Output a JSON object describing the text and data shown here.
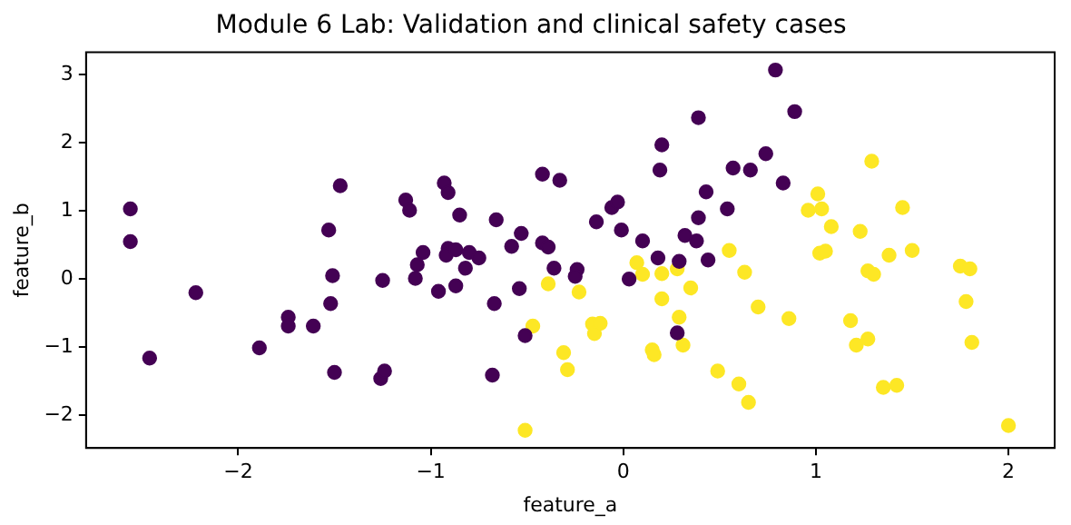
{
  "chart_data": {
    "type": "scatter",
    "title": "Module 6 Lab: Validation and clinical safety cases",
    "xlabel": "feature_a",
    "ylabel": "feature_b",
    "xlim": [
      -2.79,
      2.24
    ],
    "ylim": [
      -2.48,
      3.33
    ],
    "xticks": [
      {
        "value": -2,
        "label": "−2"
      },
      {
        "value": -1,
        "label": "−1"
      },
      0,
      1,
      2
    ],
    "yticks": [
      {
        "value": -2,
        "label": "−2"
      },
      {
        "value": -1,
        "label": "−1"
      },
      0,
      1,
      2,
      3
    ],
    "grid": false,
    "legend": false,
    "marker": "circle",
    "series": [
      {
        "color": "#440154",
        "x": [
          -2.56,
          -2.56,
          -2.46,
          -2.22,
          -1.89,
          -1.74,
          -1.74,
          -1.61,
          -1.47,
          -1.53,
          -1.51,
          -1.52,
          -1.5,
          -1.25,
          -1.26,
          -1.24,
          -1.13,
          -1.11,
          -1.04,
          -1.07,
          -1.08,
          -0.96,
          -0.93,
          -0.91,
          -0.85,
          -0.91,
          -0.92,
          -0.87,
          -0.8,
          -0.75,
          -0.82,
          -0.87,
          -0.66,
          -0.67,
          -0.68,
          -0.53,
          -0.58,
          -0.54,
          -0.51,
          -0.42,
          -0.33,
          -0.42,
          -0.39,
          -0.36,
          -0.24,
          -0.25,
          -0.14,
          -0.06,
          -0.03,
          -0.01,
          0.1,
          0.03,
          0.79,
          0.89,
          0.39,
          0.2,
          0.19,
          0.57,
          0.66,
          0.74,
          0.83,
          0.43,
          0.39,
          0.54,
          0.32,
          0.38,
          0.18,
          0.29,
          0.44,
          0.28
        ],
        "values": [
          1.03,
          0.55,
          -1.16,
          -0.2,
          -1.01,
          -0.56,
          -0.69,
          -0.69,
          1.37,
          0.72,
          0.05,
          -0.36,
          -1.37,
          -0.02,
          -1.46,
          -1.35,
          1.16,
          1.01,
          0.39,
          0.21,
          0.01,
          -0.18,
          1.41,
          1.27,
          0.94,
          0.45,
          0.35,
          0.43,
          0.39,
          0.31,
          0.16,
          -0.1,
          0.87,
          -0.36,
          -1.41,
          0.67,
          0.48,
          -0.14,
          -0.83,
          1.54,
          1.45,
          0.53,
          0.47,
          0.16,
          0.14,
          0.04,
          0.84,
          1.05,
          1.13,
          0.72,
          0.56,
          0,
          3.07,
          2.46,
          2.37,
          1.97,
          1.6,
          1.63,
          1.6,
          1.84,
          1.41,
          1.28,
          0.9,
          1.03,
          0.64,
          0.56,
          0.31,
          0.26,
          0.28,
          -0.79
        ]
      },
      {
        "color": "#fde725",
        "x": [
          -0.39,
          -0.23,
          -0.47,
          -0.31,
          -0.29,
          -0.16,
          -0.12,
          -0.15,
          -0.51,
          0.07,
          0.1,
          1.29,
          1.01,
          0.96,
          1.03,
          1.08,
          1.45,
          1.23,
          1.02,
          1.05,
          1.38,
          1.5,
          1.27,
          1.3,
          1.75,
          1.8,
          1.78,
          1.81,
          1.18,
          1.21,
          1.27,
          1.35,
          1.42,
          2.0,
          0.55,
          0.63,
          0.7,
          0.86,
          0.35,
          0.28,
          0.2,
          0.2,
          0.29,
          0.31,
          0.15,
          0.16,
          0.49,
          0.6,
          0.65
        ],
        "values": [
          -0.07,
          -0.19,
          -0.69,
          -1.08,
          -1.33,
          -0.66,
          -0.65,
          -0.8,
          -2.22,
          0.24,
          0.07,
          1.73,
          1.25,
          1.01,
          1.03,
          0.77,
          1.05,
          0.7,
          0.38,
          0.41,
          0.35,
          0.42,
          0.12,
          0.07,
          0.19,
          0.15,
          -0.33,
          -0.93,
          -0.61,
          -0.97,
          -0.88,
          -1.59,
          -1.56,
          -2.15,
          0.42,
          0.1,
          -0.41,
          -0.58,
          -0.13,
          0.15,
          0.08,
          -0.29,
          -0.56,
          -0.97,
          -1.04,
          -1.11,
          -1.35,
          -1.54,
          -1.81
        ]
      }
    ]
  }
}
